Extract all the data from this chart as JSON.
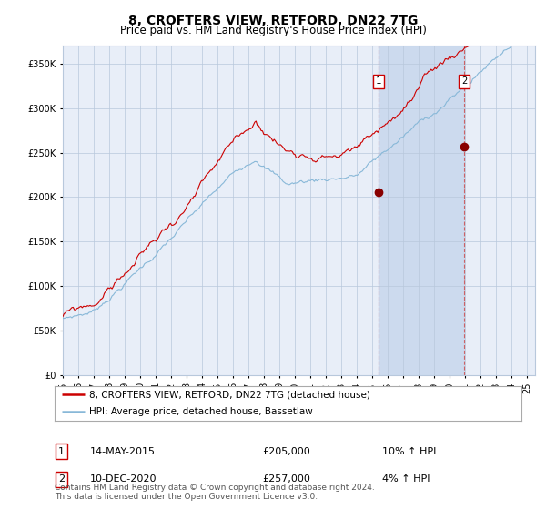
{
  "title": "8, CROFTERS VIEW, RETFORD, DN22 7TG",
  "subtitle": "Price paid vs. HM Land Registry's House Price Index (HPI)",
  "red_label": "8, CROFTERS VIEW, RETFORD, DN22 7TG (detached house)",
  "blue_label": "HPI: Average price, detached house, Bassetlaw",
  "footer": "Contains HM Land Registry data © Crown copyright and database right 2024.\nThis data is licensed under the Open Government Licence v3.0.",
  "event1_date": 2015.37,
  "event1_label": "14-MAY-2015",
  "event1_price": "£205,000",
  "event1_hpi": "10% ↑ HPI",
  "event1_value": 205000,
  "event2_date": 2020.94,
  "event2_label": "10-DEC-2020",
  "event2_price": "£257,000",
  "event2_hpi": "4% ↑ HPI",
  "event2_value": 257000,
  "ylim": [
    0,
    370000
  ],
  "xlim_start": 1995.0,
  "xlim_end": 2025.5,
  "plot_bg_color": "#e8eef8",
  "shaded_region_color": "#ccdaee",
  "grid_color": "#b8c8dc",
  "red_line_color": "#cc0000",
  "blue_line_color": "#88b8d8",
  "marker_color": "#880000",
  "fig_bg_color": "#ffffff",
  "title_fontsize": 10,
  "subtitle_fontsize": 8.5,
  "tick_fontsize": 7,
  "ytick_labels": [
    "£0",
    "£50K",
    "£100K",
    "£150K",
    "£200K",
    "£250K",
    "£300K",
    "£350K"
  ],
  "ytick_values": [
    0,
    50000,
    100000,
    150000,
    200000,
    250000,
    300000,
    350000
  ],
  "xtick_years": [
    1995,
    1996,
    1997,
    1998,
    1999,
    2000,
    2001,
    2002,
    2003,
    2004,
    2005,
    2006,
    2007,
    2008,
    2009,
    2010,
    2011,
    2012,
    2013,
    2014,
    2015,
    2016,
    2017,
    2018,
    2019,
    2020,
    2021,
    2022,
    2023,
    2024,
    2025
  ]
}
